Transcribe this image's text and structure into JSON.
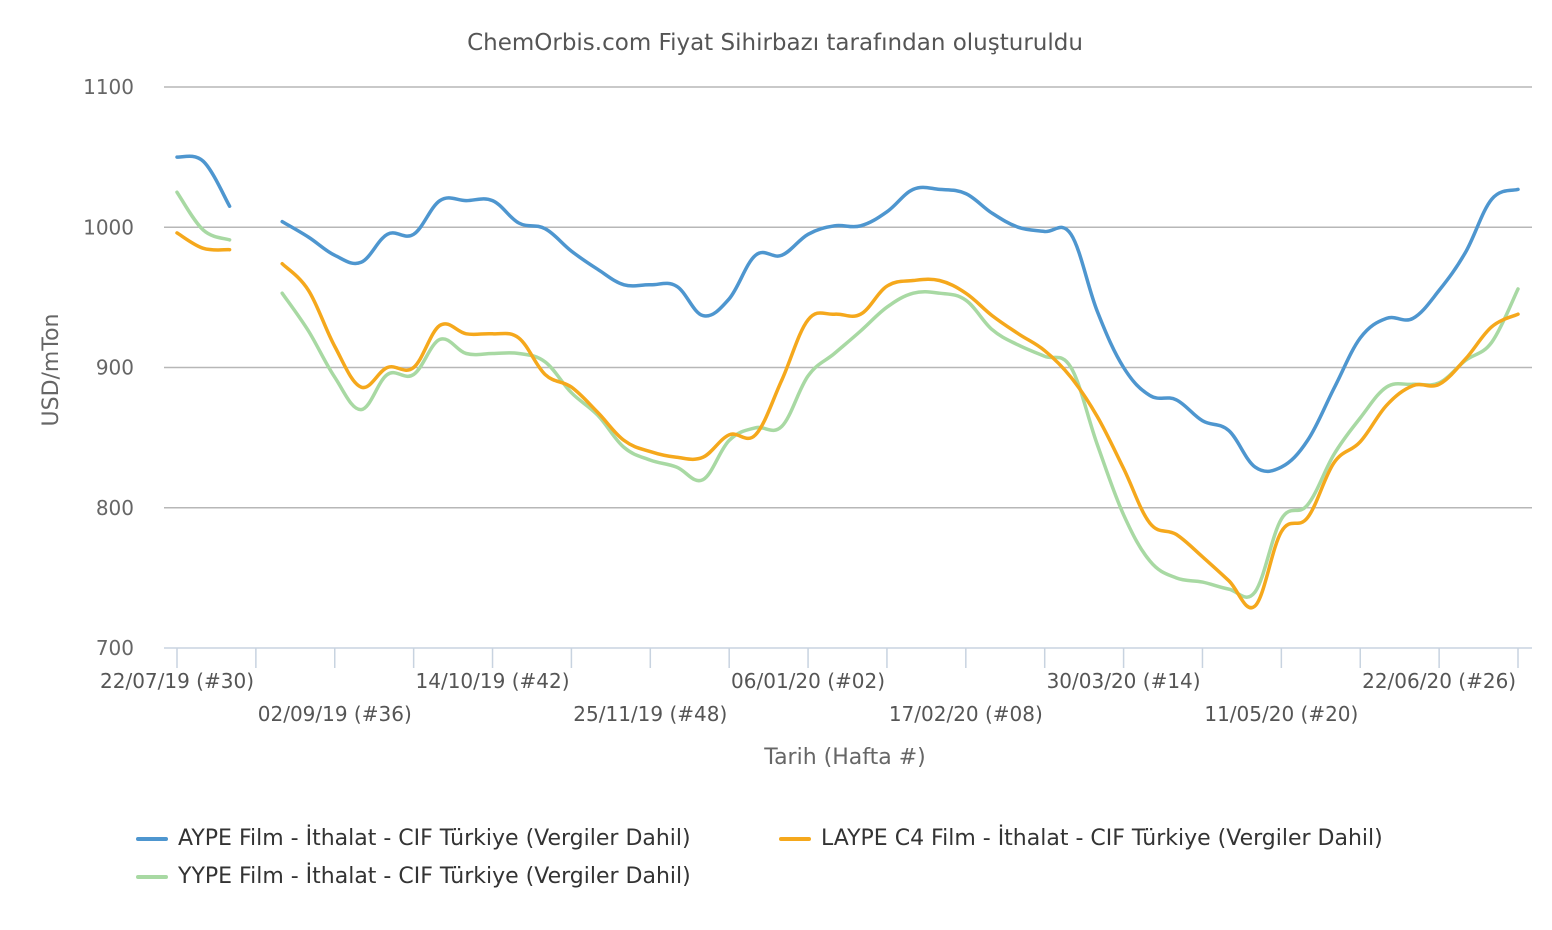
{
  "chart_data": {
    "type": "line",
    "title": "ChemOrbis.com Fiyat Sihirbazı tarafından oluşturuldu",
    "xlabel": "Tarih (Hafta #)",
    "ylabel": "USD/mTon",
    "ylim": [
      700,
      1100
    ],
    "yticks": [
      "700",
      "800",
      "900",
      "1000",
      "1100"
    ],
    "grid": true,
    "legend_position": "bottom",
    "x_tick_labels": [
      {
        "label": "22/07/19 (#30)",
        "week": 0,
        "row": 1
      },
      {
        "label": "02/09/19 (#36)",
        "week": 6,
        "row": 2
      },
      {
        "label": "14/10/19 (#42)",
        "week": 12,
        "row": 1
      },
      {
        "label": "25/11/19 (#48)",
        "week": 18,
        "row": 2
      },
      {
        "label": "06/01/20 (#02)",
        "week": 24,
        "row": 1
      },
      {
        "label": "17/02/20 (#08)",
        "week": 30,
        "row": 2
      },
      {
        "label": "30/03/20 (#14)",
        "week": 36,
        "row": 1
      },
      {
        "label": "11/05/20 (#20)",
        "week": 42,
        "row": 2
      },
      {
        "label": "22/06/20 (#26)",
        "week": 48,
        "row": 1
      }
    ],
    "minor_tick_weeks": [
      0,
      3,
      6,
      9,
      12,
      15,
      18,
      21,
      24,
      27,
      30,
      33,
      36,
      39,
      42,
      45,
      48,
      51
    ],
    "series": [
      {
        "name": "AYPE Film - İthalat - CIF Türkiye (Vergiler Dahil)",
        "color": "#4e96cf",
        "points": [
          [
            0,
            1050
          ],
          [
            1,
            1047
          ],
          [
            2,
            1015
          ],
          [
            4,
            1004
          ],
          [
            5,
            993
          ],
          [
            6,
            980
          ],
          [
            7,
            975
          ],
          [
            8,
            995
          ],
          [
            9,
            995
          ],
          [
            10,
            1019
          ],
          [
            11,
            1019
          ],
          [
            12,
            1019
          ],
          [
            13,
            1003
          ],
          [
            14,
            999
          ],
          [
            15,
            983
          ],
          [
            16,
            970
          ],
          [
            17,
            959
          ],
          [
            18,
            959
          ],
          [
            19,
            958
          ],
          [
            20,
            937
          ],
          [
            21,
            949
          ],
          [
            22,
            980
          ],
          [
            23,
            980
          ],
          [
            24,
            995
          ],
          [
            25,
            1001
          ],
          [
            26,
            1001
          ],
          [
            27,
            1011
          ],
          [
            28,
            1027
          ],
          [
            29,
            1027
          ],
          [
            30,
            1024
          ],
          [
            31,
            1010
          ],
          [
            32,
            1000
          ],
          [
            33,
            997
          ],
          [
            34,
            995
          ],
          [
            35,
            940
          ],
          [
            36,
            900
          ],
          [
            37,
            880
          ],
          [
            38,
            877
          ],
          [
            39,
            862
          ],
          [
            40,
            855
          ],
          [
            41,
            829
          ],
          [
            42,
            829
          ],
          [
            43,
            848
          ],
          [
            44,
            885
          ],
          [
            45,
            921
          ],
          [
            46,
            935
          ],
          [
            47,
            935
          ],
          [
            48,
            955
          ],
          [
            49,
            982
          ],
          [
            50,
            1020
          ],
          [
            51,
            1027
          ]
        ]
      },
      {
        "name": "LAYPE C4 Film - İthalat - CIF Türkiye (Vergiler Dahil)",
        "color": "#f5a81c",
        "points": [
          [
            0,
            996
          ],
          [
            1,
            985
          ],
          [
            2,
            984
          ],
          [
            4,
            974
          ],
          [
            5,
            955
          ],
          [
            6,
            915
          ],
          [
            7,
            886
          ],
          [
            8,
            900
          ],
          [
            9,
            900
          ],
          [
            10,
            930
          ],
          [
            11,
            924
          ],
          [
            12,
            924
          ],
          [
            13,
            921
          ],
          [
            14,
            895
          ],
          [
            15,
            886
          ],
          [
            16,
            868
          ],
          [
            17,
            848
          ],
          [
            18,
            840
          ],
          [
            19,
            836
          ],
          [
            20,
            836
          ],
          [
            21,
            852
          ],
          [
            22,
            852
          ],
          [
            23,
            891
          ],
          [
            24,
            934
          ],
          [
            25,
            938
          ],
          [
            26,
            938
          ],
          [
            27,
            958
          ],
          [
            28,
            962
          ],
          [
            29,
            962
          ],
          [
            30,
            953
          ],
          [
            31,
            937
          ],
          [
            32,
            924
          ],
          [
            33,
            912
          ],
          [
            34,
            893
          ],
          [
            35,
            865
          ],
          [
            36,
            828
          ],
          [
            37,
            789
          ],
          [
            38,
            781
          ],
          [
            39,
            765
          ],
          [
            40,
            748
          ],
          [
            41,
            730
          ],
          [
            42,
            783
          ],
          [
            43,
            793
          ],
          [
            44,
            832
          ],
          [
            45,
            847
          ],
          [
            46,
            873
          ],
          [
            47,
            887
          ],
          [
            48,
            888
          ],
          [
            49,
            906
          ],
          [
            50,
            929
          ],
          [
            51,
            938
          ]
        ]
      },
      {
        "name": "YYPE Film - İthalat - CIF Türkiye (Vergiler Dahil)",
        "color": "#a8d9a3",
        "points": [
          [
            0,
            1025
          ],
          [
            1,
            998
          ],
          [
            2,
            991
          ],
          [
            4,
            953
          ],
          [
            5,
            926
          ],
          [
            6,
            893
          ],
          [
            7,
            870
          ],
          [
            8,
            895
          ],
          [
            9,
            895
          ],
          [
            10,
            920
          ],
          [
            11,
            910
          ],
          [
            12,
            910
          ],
          [
            13,
            910
          ],
          [
            14,
            904
          ],
          [
            15,
            882
          ],
          [
            16,
            866
          ],
          [
            17,
            843
          ],
          [
            18,
            834
          ],
          [
            19,
            829
          ],
          [
            20,
            820
          ],
          [
            21,
            848
          ],
          [
            22,
            857
          ],
          [
            23,
            858
          ],
          [
            24,
            894
          ],
          [
            25,
            910
          ],
          [
            26,
            926
          ],
          [
            27,
            943
          ],
          [
            28,
            953
          ],
          [
            29,
            953
          ],
          [
            30,
            948
          ],
          [
            31,
            927
          ],
          [
            32,
            916
          ],
          [
            33,
            908
          ],
          [
            34,
            900
          ],
          [
            35,
            845
          ],
          [
            36,
            795
          ],
          [
            37,
            762
          ],
          [
            38,
            750
          ],
          [
            39,
            747
          ],
          [
            40,
            742
          ],
          [
            41,
            740
          ],
          [
            42,
            792
          ],
          [
            43,
            802
          ],
          [
            44,
            838
          ],
          [
            45,
            864
          ],
          [
            46,
            886
          ],
          [
            47,
            888
          ],
          [
            48,
            889
          ],
          [
            49,
            905
          ],
          [
            50,
            918
          ],
          [
            51,
            956
          ]
        ]
      }
    ]
  }
}
